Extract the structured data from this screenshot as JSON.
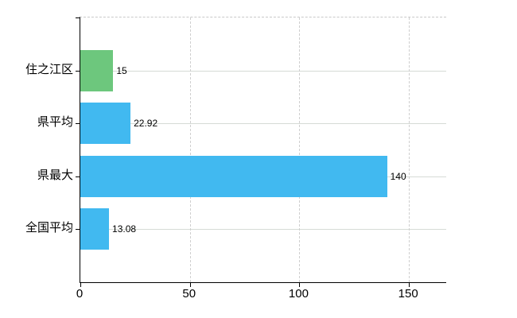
{
  "chart_data": {
    "type": "bar",
    "orientation": "horizontal",
    "title": "",
    "xlabel": "",
    "ylabel": "",
    "categories": [
      "住之江区",
      "県平均",
      "県最大",
      "全国平均"
    ],
    "values": [
      15,
      22.92,
      140,
      13.08
    ],
    "value_labels": [
      "15",
      "22.92",
      "140",
      "13.08"
    ],
    "bar_colors": [
      "#6dc77d",
      "#41b9f0",
      "#41b9f0",
      "#41b9f0"
    ],
    "x_ticks": [
      0,
      50,
      100,
      150
    ],
    "x_tick_labels": [
      "0",
      "50",
      "100",
      "150"
    ],
    "xlim": [
      0,
      167
    ],
    "grid": {
      "horizontal": "solid line at each category center",
      "vertical": "dashed lines at x ticks",
      "top_border": "dashed"
    },
    "legend": "none"
  },
  "colors": {
    "background": "#ffffff",
    "axis": "#000000",
    "horizontal_gridline": "#d6dbd6",
    "vertical_gridline": "#cfcfcf",
    "text": "#000000",
    "green_bar": "#6dc77d",
    "blue_bar": "#41b9f0"
  }
}
